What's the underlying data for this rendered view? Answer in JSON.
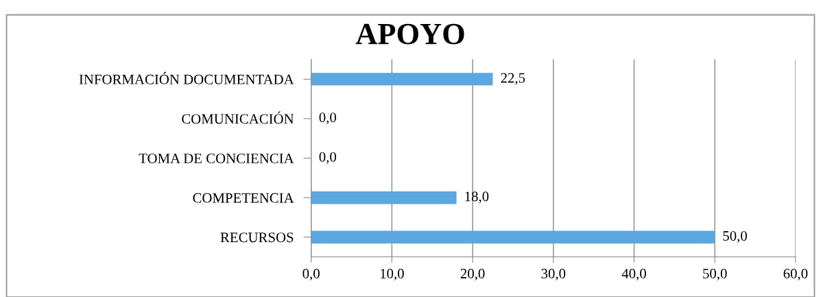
{
  "chart_data": {
    "type": "bar",
    "orientation": "horizontal",
    "title": "APOYO",
    "categories": [
      "INFORMACIÓN DOCUMENTADA",
      "COMUNICACIÓN",
      "TOMA DE CONCIENCIA",
      "COMPETENCIA",
      "RECURSOS"
    ],
    "values": [
      22.5,
      0,
      0,
      18,
      50
    ],
    "value_labels": [
      "22,5",
      "0,0",
      "0,0",
      "18,0",
      "50,0"
    ],
    "color": "#5ba7e0",
    "xlim": [
      0,
      60
    ],
    "xticks": [
      {
        "value": 0,
        "label": "0,0"
      },
      {
        "value": 10,
        "label": "10,0"
      },
      {
        "value": 20,
        "label": "20,0"
      },
      {
        "value": 30,
        "label": "30,0"
      },
      {
        "value": 40,
        "label": "40,0"
      },
      {
        "value": 50,
        "label": "50,0"
      },
      {
        "value": 60,
        "label": "60,0"
      }
    ],
    "grid": "x"
  }
}
